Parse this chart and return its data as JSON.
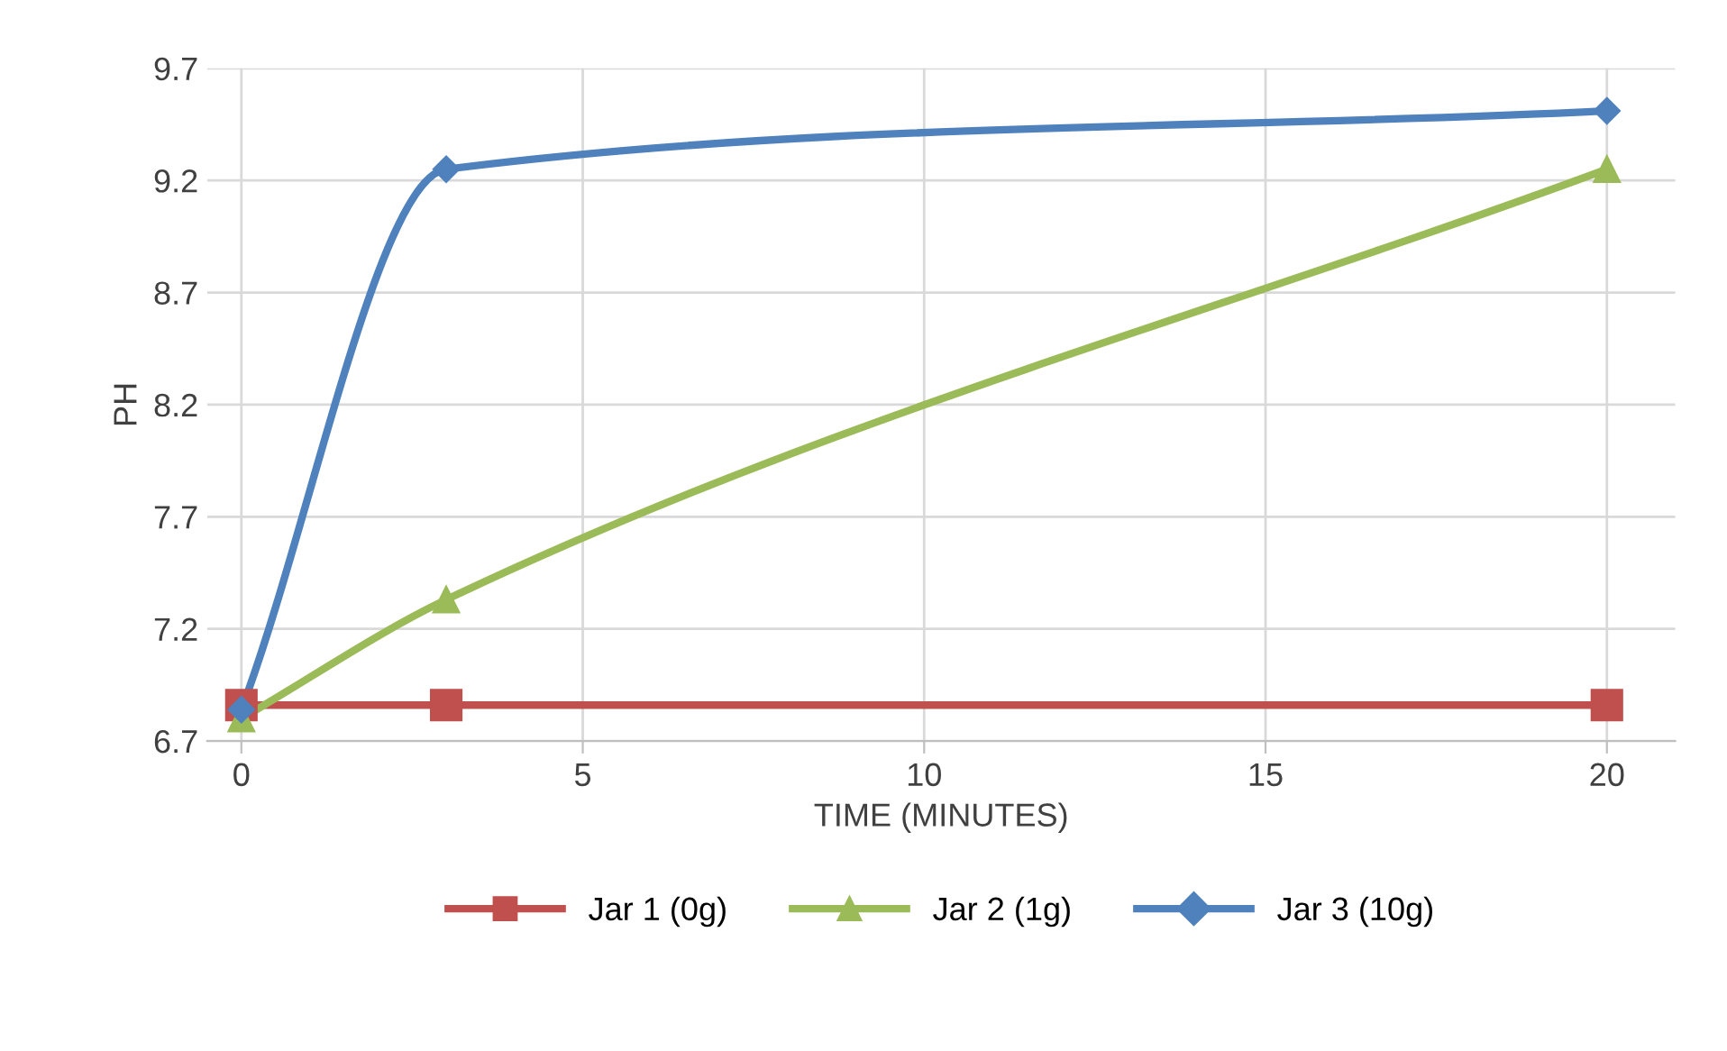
{
  "chart_data": {
    "type": "line",
    "xlabel": "TIME (MINUTES)",
    "ylabel": "PH",
    "x": [
      0,
      3,
      20
    ],
    "series": [
      {
        "name": "Jar 1 (0g)",
        "color": "#c0504d",
        "marker": "square",
        "values": [
          6.86,
          6.86,
          6.86
        ]
      },
      {
        "name": "Jar 2 (1g)",
        "color": "#9bbb59",
        "marker": "triangle",
        "values": [
          6.8,
          7.33,
          9.25
        ]
      },
      {
        "name": "Jar 3 (10g)",
        "color": "#4f81bd",
        "marker": "diamond",
        "values": [
          6.84,
          9.25,
          9.51
        ]
      }
    ],
    "xlim": [
      -0.5,
      21
    ],
    "xticks": [
      0,
      5,
      10,
      15,
      20
    ],
    "ylim": [
      6.7,
      9.7
    ],
    "yticks": [
      6.7,
      7.2,
      7.7,
      8.2,
      8.7,
      9.2,
      9.7
    ],
    "grid": true,
    "legend": "bottom",
    "line_style": "solid"
  }
}
